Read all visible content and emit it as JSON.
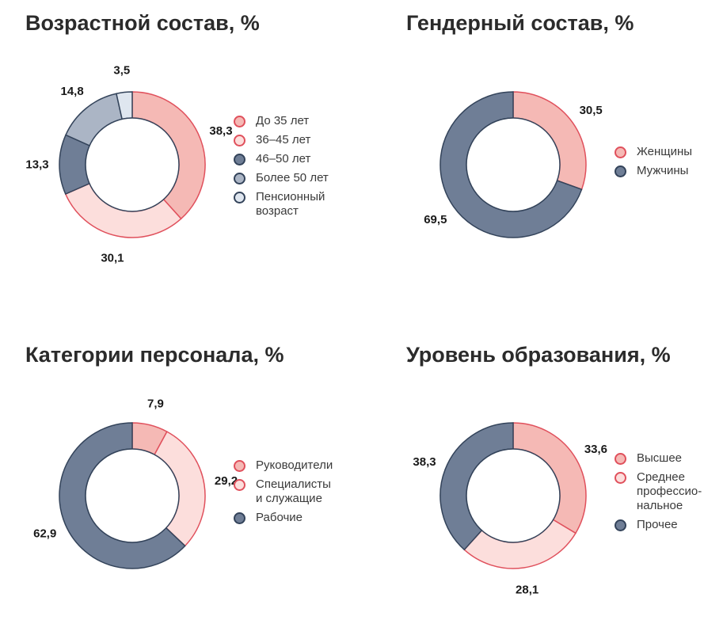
{
  "colors": {
    "red_stroke": "#e0505c",
    "dark_stroke": "#33435a",
    "pink": "#f5b9b5",
    "light_pink": "#fcdedc",
    "slate": "#6f7e96",
    "gray_blue": "#abb5c5",
    "pale_blue": "#dfe6ef"
  },
  "chart_data": [
    {
      "type": "pie",
      "title": "Возрастной состав, %",
      "categories": [
        "До 35 лет",
        "36–45 лет",
        "46–50 лет",
        "Более 50 лет",
        "Пенсионный\nвозраст"
      ],
      "values": [
        38.3,
        30.1,
        13.3,
        14.8,
        3.5
      ],
      "labels": [
        "38,3",
        "30,1",
        "13,3",
        "14,8",
        "3,5"
      ],
      "fills": [
        "pink",
        "light_pink",
        "slate",
        "gray_blue",
        "pale_blue"
      ],
      "legend": "right"
    },
    {
      "type": "pie",
      "title": "Гендерный состав, %",
      "categories": [
        "Женщины",
        "Мужчины"
      ],
      "values": [
        30.5,
        69.5
      ],
      "labels": [
        "30,5",
        "69,5"
      ],
      "fills": [
        "pink",
        "slate"
      ],
      "legend": "right"
    },
    {
      "type": "pie",
      "title": "Категории персонала, %",
      "categories": [
        "Руководители",
        "Специалисты\nи служащие",
        "Рабочие"
      ],
      "values": [
        7.9,
        29.2,
        62.9
      ],
      "labels": [
        "7,9",
        "29,2",
        "62,9"
      ],
      "fills": [
        "pink",
        "light_pink",
        "slate"
      ],
      "legend": "right"
    },
    {
      "type": "pie",
      "title": "Уровень образования, %",
      "categories": [
        "Высшее",
        "Среднее\nпрофессио-\nнальное",
        "Прочее"
      ],
      "values": [
        33.6,
        28.1,
        38.3
      ],
      "labels": [
        "33,6",
        "28,1",
        "38,3"
      ],
      "fills": [
        "pink",
        "light_pink",
        "slate"
      ],
      "legend": "right"
    }
  ]
}
